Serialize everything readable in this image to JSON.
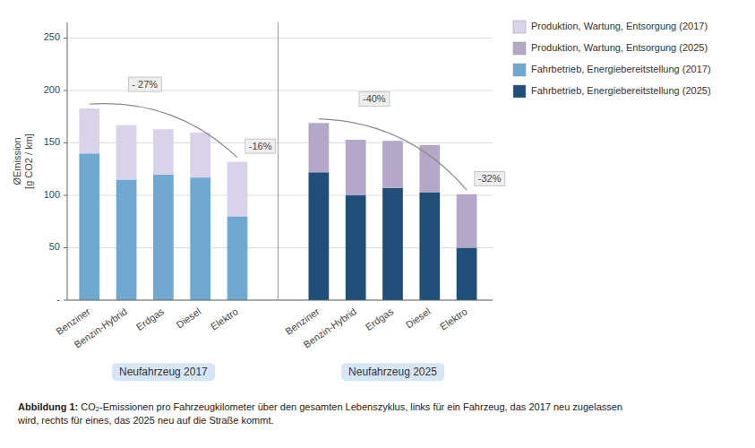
{
  "chart_data": {
    "type": "bar",
    "stacked": true,
    "grid": true,
    "legend": "top-right",
    "ylabel": "ØEmission\n[g CO2 / km]",
    "ylim": [
      0,
      265
    ],
    "yticks": [
      {
        "value": 0,
        "label": "-"
      },
      50,
      100,
      150,
      200,
      250
    ],
    "categories": [
      "Benziner",
      "Benzin-Hybrid",
      "Erdgas",
      "Diesel",
      "Elektro",
      "Benziner",
      "Benzin-Hybrid",
      "Erdgas",
      "Diesel",
      "Elektro"
    ],
    "group_labels": [
      "Neufahrzeug 2017",
      "Neufahrzeug 2025"
    ],
    "series": [
      {
        "name": "Produktion, Wartung, Entsorgung (2017)",
        "color": "#d9d2e9",
        "values": [
          43,
          52,
          43,
          43,
          52,
          null,
          null,
          null,
          null,
          null
        ]
      },
      {
        "name": "Produktion, Wartung, Entsorgung (2025)",
        "color": "#b4a7c7",
        "values": [
          null,
          null,
          null,
          null,
          null,
          47,
          53,
          45,
          45,
          51
        ]
      },
      {
        "name": "Fahrbetrieb, Energiebereitstellung (2017)",
        "color": "#6fa8d0",
        "values": [
          140,
          115,
          120,
          117,
          80,
          null,
          null,
          null,
          null,
          null
        ]
      },
      {
        "name": "Fahrbetrieb, Energiebereitstellung (2025)",
        "color": "#1f4e79",
        "values": [
          null,
          null,
          null,
          null,
          null,
          122,
          100,
          107,
          103,
          50
        ]
      }
    ],
    "annotations": [
      "- 27%",
      "-16%",
      "-40%",
      "-32%"
    ],
    "caption": {
      "bold": "Abbildung 1:",
      "text": " CO₂-Emissionen pro Fahrzeugkilometer über den gesamten Lebenszyklus, links für ein Fahrzeug, das 2017 neu zugelassen\nwird, rechts für eines, das 2025 neu auf die Straße kommt."
    }
  }
}
